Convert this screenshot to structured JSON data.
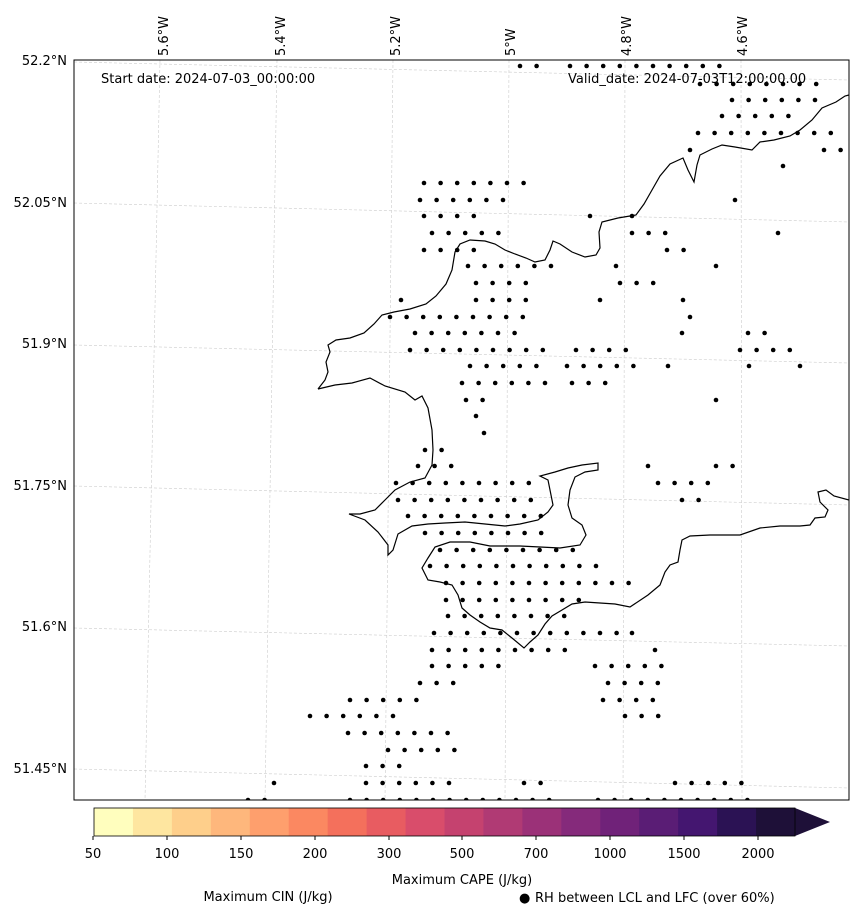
{
  "map": {
    "start_date": "Start date: 2024-07-03_00:00:00",
    "valid_date": "Valid_date: 2024-07-03T12:00:00.00",
    "lon_labels": [
      "5.6°W",
      "5.4°W",
      "5.2°W",
      "5°W",
      "4.8°W",
      "4.6°W"
    ],
    "lat_labels": [
      "52.2°N",
      "52.05°N",
      "51.9°N",
      "51.75°N",
      "51.6°N",
      "51.45°N"
    ],
    "coastline_color": "#000000",
    "gridline_color": "#cccccc"
  },
  "colorbar": {
    "ticks": [
      "50",
      "100",
      "150",
      "200",
      "250",
      "300",
      "500",
      "700",
      "1000",
      "1500",
      "2000"
    ],
    "colors": [
      "#fffebe",
      "#fee6a0",
      "#fecf8b",
      "#feb77c",
      "#fe9f6d",
      "#fb8861",
      "#f4705c",
      "#e85c61",
      "#d94d6b",
      "#c5426f",
      "#b03a74",
      "#9b3178",
      "#852a7b",
      "#702279",
      "#5a1d75",
      "#441670",
      "#2b1254",
      "#1e1038"
    ],
    "extend_color": "#1e1038"
  },
  "legend": {
    "cape_label": "Maximum CAPE (J/kg)",
    "cin_label": "Maximum CIN (J/kg)",
    "cin_color": "#ff0000",
    "rh_marker": "●",
    "rh_label": "RH between LCL and LFC (over 60%)"
  }
}
